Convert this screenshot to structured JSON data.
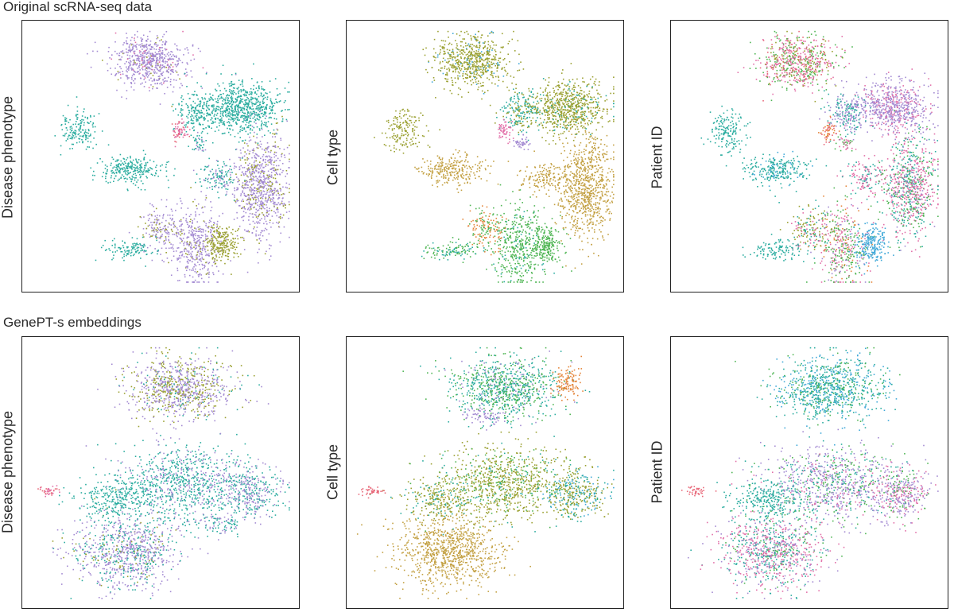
{
  "sections": [
    {
      "title": "Original scRNA-seq data"
    },
    {
      "title": "GenePT-s embeddings"
    }
  ],
  "colors": {
    "red": "#e8697a",
    "orange": "#e4853a",
    "olive": "#9aa030",
    "gold": "#c3a042",
    "green": "#4eb553",
    "teal": "#2aac9f",
    "blue": "#3fa8d8",
    "purple": "#a38ad2",
    "pink": "#e26fa8"
  },
  "chart_data": [
    {
      "type": "scatter",
      "title": "",
      "ylabel": "Disease phenotype",
      "clusters": [
        {
          "x": 0.45,
          "y": 0.87,
          "sx": 0.07,
          "sy": 0.05,
          "n": 650,
          "mix": {
            "purple": 0.85,
            "pink": 0.08,
            "olive": 0.07
          }
        },
        {
          "x": 0.81,
          "y": 0.69,
          "sx": 0.07,
          "sy": 0.05,
          "n": 700,
          "mix": {
            "teal": 1
          }
        },
        {
          "x": 0.64,
          "y": 0.67,
          "sx": 0.04,
          "sy": 0.04,
          "n": 200,
          "mix": {
            "teal": 1
          }
        },
        {
          "x": 0.19,
          "y": 0.6,
          "sx": 0.035,
          "sy": 0.04,
          "n": 160,
          "mix": {
            "teal": 1
          }
        },
        {
          "x": 0.38,
          "y": 0.45,
          "sx": 0.06,
          "sy": 0.03,
          "n": 260,
          "mix": {
            "teal": 1
          }
        },
        {
          "x": 0.72,
          "y": 0.42,
          "sx": 0.04,
          "sy": 0.03,
          "n": 130,
          "mix": {
            "teal": 0.7,
            "purple": 0.3
          }
        },
        {
          "x": 0.88,
          "y": 0.38,
          "sx": 0.05,
          "sy": 0.1,
          "n": 800,
          "mix": {
            "purple": 0.8,
            "olive": 0.2
          }
        },
        {
          "x": 0.63,
          "y": 0.16,
          "sx": 0.05,
          "sy": 0.08,
          "n": 420,
          "mix": {
            "purple": 0.9,
            "olive": 0.1
          }
        },
        {
          "x": 0.5,
          "y": 0.22,
          "sx": 0.04,
          "sy": 0.04,
          "n": 160,
          "mix": {
            "purple": 0.7,
            "olive": 0.3
          }
        },
        {
          "x": 0.73,
          "y": 0.16,
          "sx": 0.03,
          "sy": 0.035,
          "n": 220,
          "mix": {
            "olive": 1
          }
        },
        {
          "x": 0.38,
          "y": 0.14,
          "sx": 0.05,
          "sy": 0.02,
          "n": 110,
          "mix": {
            "teal": 1
          }
        },
        {
          "x": 0.57,
          "y": 0.6,
          "sx": 0.015,
          "sy": 0.02,
          "n": 60,
          "mix": {
            "pink": 0.7,
            "red": 0.3
          }
        },
        {
          "x": 0.64,
          "y": 0.55,
          "sx": 0.015,
          "sy": 0.015,
          "n": 40,
          "mix": {
            "purple": 0.5,
            "teal": 0.5
          }
        }
      ]
    },
    {
      "type": "scatter",
      "title": "",
      "ylabel": "Cell type",
      "clusters": [
        {
          "x": 0.45,
          "y": 0.87,
          "sx": 0.07,
          "sy": 0.05,
          "n": 650,
          "mix": {
            "olive": 0.9,
            "blue": 0.1
          }
        },
        {
          "x": 0.81,
          "y": 0.69,
          "sx": 0.07,
          "sy": 0.05,
          "n": 700,
          "mix": {
            "olive": 0.85,
            "teal": 0.15
          }
        },
        {
          "x": 0.64,
          "y": 0.67,
          "sx": 0.04,
          "sy": 0.04,
          "n": 200,
          "mix": {
            "teal": 0.6,
            "olive": 0.4
          }
        },
        {
          "x": 0.19,
          "y": 0.6,
          "sx": 0.035,
          "sy": 0.04,
          "n": 160,
          "mix": {
            "olive": 1
          }
        },
        {
          "x": 0.38,
          "y": 0.45,
          "sx": 0.06,
          "sy": 0.03,
          "n": 260,
          "mix": {
            "gold": 1
          }
        },
        {
          "x": 0.72,
          "y": 0.42,
          "sx": 0.04,
          "sy": 0.03,
          "n": 130,
          "mix": {
            "gold": 1
          }
        },
        {
          "x": 0.88,
          "y": 0.38,
          "sx": 0.05,
          "sy": 0.1,
          "n": 800,
          "mix": {
            "gold": 1
          }
        },
        {
          "x": 0.63,
          "y": 0.16,
          "sx": 0.05,
          "sy": 0.08,
          "n": 420,
          "mix": {
            "green": 0.85,
            "teal": 0.15
          }
        },
        {
          "x": 0.5,
          "y": 0.22,
          "sx": 0.04,
          "sy": 0.04,
          "n": 160,
          "mix": {
            "orange": 0.6,
            "green": 0.4
          }
        },
        {
          "x": 0.73,
          "y": 0.16,
          "sx": 0.03,
          "sy": 0.035,
          "n": 220,
          "mix": {
            "green": 1
          }
        },
        {
          "x": 0.38,
          "y": 0.14,
          "sx": 0.05,
          "sy": 0.02,
          "n": 110,
          "mix": {
            "green": 0.6,
            "teal": 0.4
          }
        },
        {
          "x": 0.57,
          "y": 0.6,
          "sx": 0.015,
          "sy": 0.02,
          "n": 60,
          "mix": {
            "pink": 1
          }
        },
        {
          "x": 0.64,
          "y": 0.55,
          "sx": 0.015,
          "sy": 0.015,
          "n": 40,
          "mix": {
            "purple": 1
          }
        }
      ]
    },
    {
      "type": "scatter",
      "title": "",
      "ylabel": "Patient ID",
      "clusters": [
        {
          "x": 0.45,
          "y": 0.87,
          "sx": 0.07,
          "sy": 0.05,
          "n": 650,
          "mix": {
            "pink": 0.35,
            "green": 0.3,
            "olive": 0.2,
            "red": 0.15
          }
        },
        {
          "x": 0.81,
          "y": 0.69,
          "sx": 0.07,
          "sy": 0.05,
          "n": 700,
          "mix": {
            "purple": 0.75,
            "pink": 0.25
          }
        },
        {
          "x": 0.64,
          "y": 0.67,
          "sx": 0.04,
          "sy": 0.04,
          "n": 200,
          "mix": {
            "teal": 0.5,
            "purple": 0.5
          }
        },
        {
          "x": 0.19,
          "y": 0.6,
          "sx": 0.035,
          "sy": 0.04,
          "n": 160,
          "mix": {
            "teal": 1
          }
        },
        {
          "x": 0.38,
          "y": 0.45,
          "sx": 0.06,
          "sy": 0.03,
          "n": 260,
          "mix": {
            "teal": 0.8,
            "blue": 0.2
          }
        },
        {
          "x": 0.72,
          "y": 0.42,
          "sx": 0.04,
          "sy": 0.03,
          "n": 130,
          "mix": {
            "pink": 0.6,
            "teal": 0.4
          }
        },
        {
          "x": 0.88,
          "y": 0.38,
          "sx": 0.05,
          "sy": 0.1,
          "n": 800,
          "mix": {
            "pink": 0.45,
            "teal": 0.25,
            "green": 0.2,
            "purple": 0.1
          }
        },
        {
          "x": 0.63,
          "y": 0.16,
          "sx": 0.05,
          "sy": 0.08,
          "n": 420,
          "mix": {
            "green": 0.4,
            "pink": 0.3,
            "orange": 0.15,
            "purple": 0.15
          }
        },
        {
          "x": 0.5,
          "y": 0.22,
          "sx": 0.04,
          "sy": 0.04,
          "n": 160,
          "mix": {
            "olive": 0.4,
            "teal": 0.3,
            "pink": 0.3
          }
        },
        {
          "x": 0.73,
          "y": 0.16,
          "sx": 0.03,
          "sy": 0.035,
          "n": 220,
          "mix": {
            "blue": 1
          }
        },
        {
          "x": 0.38,
          "y": 0.14,
          "sx": 0.05,
          "sy": 0.02,
          "n": 110,
          "mix": {
            "teal": 1
          }
        },
        {
          "x": 0.57,
          "y": 0.6,
          "sx": 0.015,
          "sy": 0.02,
          "n": 60,
          "mix": {
            "red": 0.6,
            "orange": 0.4
          }
        },
        {
          "x": 0.64,
          "y": 0.55,
          "sx": 0.015,
          "sy": 0.015,
          "n": 40,
          "mix": {
            "green": 0.5,
            "pink": 0.5
          }
        }
      ]
    },
    {
      "type": "scatter",
      "title": "",
      "ylabel": "Disease phenotype",
      "clusters": [
        {
          "x": 0.57,
          "y": 0.83,
          "sx": 0.1,
          "sy": 0.06,
          "n": 900,
          "mix": {
            "purple": 0.55,
            "olive": 0.35,
            "teal": 0.1
          }
        },
        {
          "x": 0.58,
          "y": 0.46,
          "sx": 0.13,
          "sy": 0.07,
          "n": 900,
          "mix": {
            "teal": 0.7,
            "purple": 0.3
          }
        },
        {
          "x": 0.84,
          "y": 0.42,
          "sx": 0.06,
          "sy": 0.05,
          "n": 350,
          "mix": {
            "purple": 0.5,
            "teal": 0.5
          }
        },
        {
          "x": 0.36,
          "y": 0.2,
          "sx": 0.1,
          "sy": 0.07,
          "n": 900,
          "mix": {
            "purple": 0.6,
            "teal": 0.3,
            "olive": 0.1
          }
        },
        {
          "x": 0.33,
          "y": 0.4,
          "sx": 0.07,
          "sy": 0.04,
          "n": 260,
          "mix": {
            "teal": 1
          }
        },
        {
          "x": 0.07,
          "y": 0.43,
          "sx": 0.02,
          "sy": 0.01,
          "n": 40,
          "mix": {
            "pink": 0.5,
            "red": 0.5
          }
        },
        {
          "x": 0.72,
          "y": 0.3,
          "sx": 0.04,
          "sy": 0.02,
          "n": 80,
          "mix": {
            "teal": 0.6,
            "purple": 0.4
          }
        }
      ]
    },
    {
      "type": "scatter",
      "title": "",
      "ylabel": "Cell type",
      "clusters": [
        {
          "x": 0.57,
          "y": 0.83,
          "sx": 0.1,
          "sy": 0.06,
          "n": 900,
          "mix": {
            "teal": 0.5,
            "green": 0.4,
            "purple": 0.1
          }
        },
        {
          "x": 0.81,
          "y": 0.85,
          "sx": 0.03,
          "sy": 0.03,
          "n": 120,
          "mix": {
            "orange": 1
          }
        },
        {
          "x": 0.58,
          "y": 0.46,
          "sx": 0.13,
          "sy": 0.07,
          "n": 900,
          "mix": {
            "olive": 0.7,
            "green": 0.2,
            "teal": 0.1
          }
        },
        {
          "x": 0.84,
          "y": 0.42,
          "sx": 0.06,
          "sy": 0.05,
          "n": 350,
          "mix": {
            "olive": 0.5,
            "teal": 0.3,
            "blue": 0.2
          }
        },
        {
          "x": 0.36,
          "y": 0.2,
          "sx": 0.1,
          "sy": 0.07,
          "n": 900,
          "mix": {
            "gold": 1
          }
        },
        {
          "x": 0.33,
          "y": 0.4,
          "sx": 0.07,
          "sy": 0.04,
          "n": 260,
          "mix": {
            "olive": 0.7,
            "teal": 0.3
          }
        },
        {
          "x": 0.07,
          "y": 0.43,
          "sx": 0.02,
          "sy": 0.01,
          "n": 40,
          "mix": {
            "red": 1
          }
        },
        {
          "x": 0.5,
          "y": 0.72,
          "sx": 0.05,
          "sy": 0.02,
          "n": 60,
          "mix": {
            "purple": 1
          }
        }
      ]
    },
    {
      "type": "scatter",
      "title": "",
      "ylabel": "Patient ID",
      "clusters": [
        {
          "x": 0.57,
          "y": 0.83,
          "sx": 0.1,
          "sy": 0.06,
          "n": 900,
          "mix": {
            "teal": 0.5,
            "blue": 0.3,
            "green": 0.2
          }
        },
        {
          "x": 0.58,
          "y": 0.46,
          "sx": 0.13,
          "sy": 0.07,
          "n": 900,
          "mix": {
            "purple": 0.5,
            "green": 0.2,
            "teal": 0.2,
            "pink": 0.1
          }
        },
        {
          "x": 0.84,
          "y": 0.42,
          "sx": 0.06,
          "sy": 0.05,
          "n": 350,
          "mix": {
            "purple": 0.5,
            "pink": 0.3,
            "green": 0.2
          }
        },
        {
          "x": 0.36,
          "y": 0.2,
          "sx": 0.1,
          "sy": 0.07,
          "n": 900,
          "mix": {
            "pink": 0.4,
            "teal": 0.3,
            "purple": 0.2,
            "green": 0.1
          }
        },
        {
          "x": 0.33,
          "y": 0.4,
          "sx": 0.07,
          "sy": 0.04,
          "n": 260,
          "mix": {
            "teal": 1
          }
        },
        {
          "x": 0.07,
          "y": 0.43,
          "sx": 0.02,
          "sy": 0.01,
          "n": 40,
          "mix": {
            "red": 1
          }
        }
      ]
    }
  ]
}
